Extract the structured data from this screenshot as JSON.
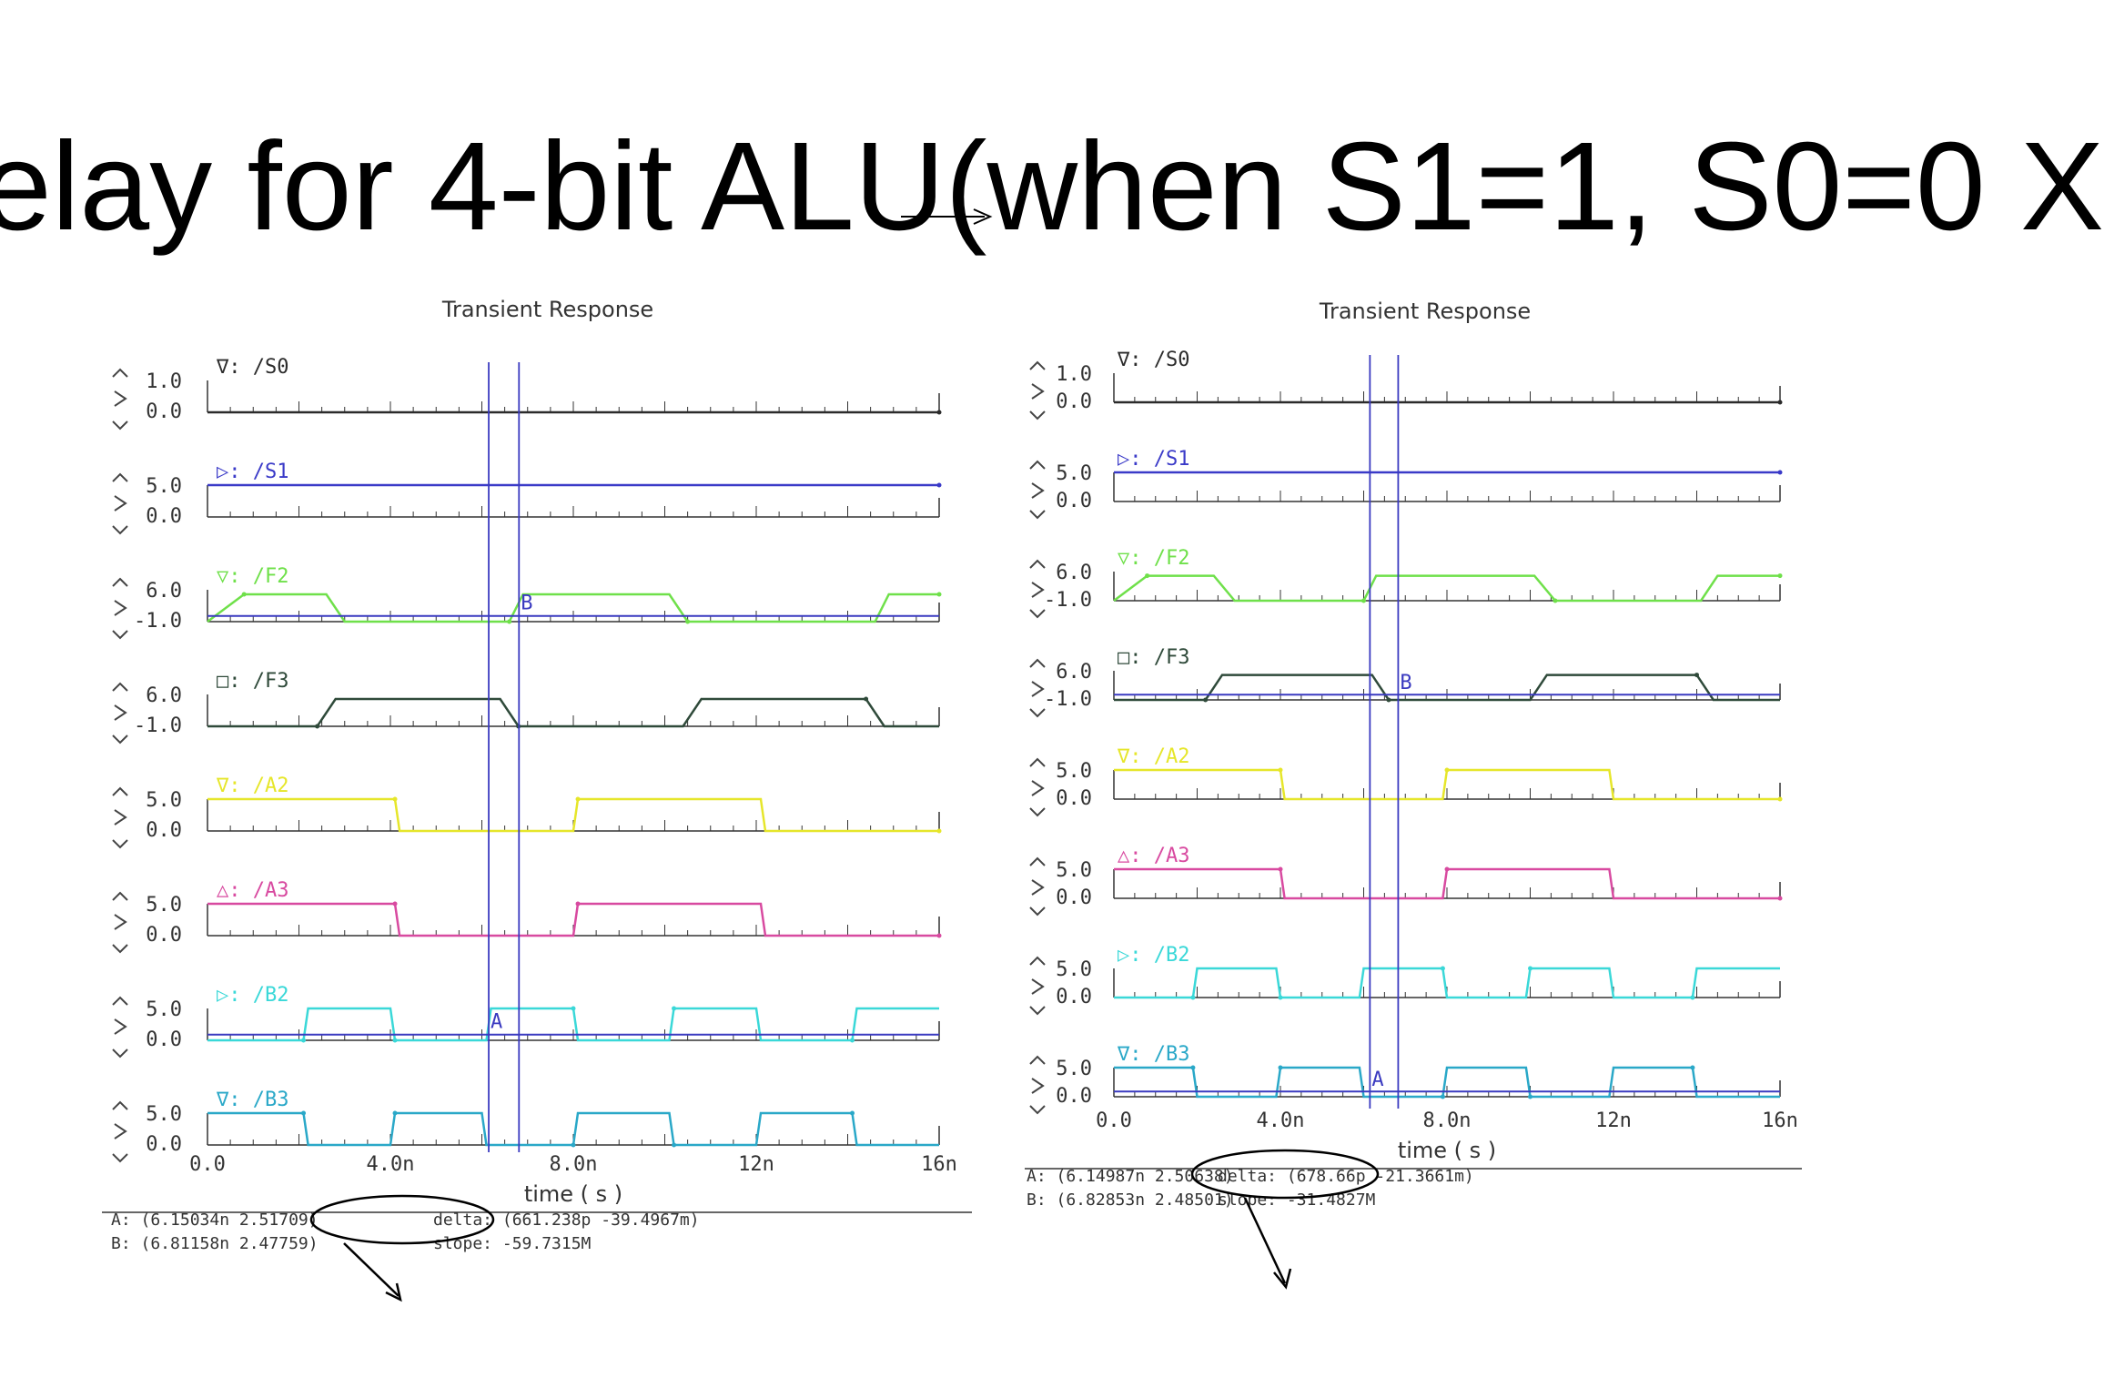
{
  "slide": {
    "title": "elay for 4-bit ALU(when S1=1, S0=0 X"
  },
  "colors": {
    "S0": "#2b2b2b",
    "S1": "#3a3ac8",
    "F2": "#6fe04a",
    "F3": "#2f4a3a",
    "A2": "#e6e62a",
    "A3": "#d84aa0",
    "B2": "#3ad8d8",
    "B3": "#2aa8c8",
    "cursor": "#3a3ac0",
    "axis": "#333333"
  },
  "chart_data": [
    {
      "type": "line",
      "title": "Transient Response",
      "xlabel": "time ( s )",
      "xlim": [
        0,
        16
      ],
      "xticks": [
        "0.0",
        "4.0n",
        "8.0n",
        "12n",
        "16n"
      ],
      "signals": [
        {
          "name": "/S0",
          "marker": "∇:",
          "yticks": [
            "1.0",
            "0.0"
          ],
          "ylim": [
            0,
            1
          ],
          "color_key": "S0",
          "points": [
            [
              0,
              0
            ],
            [
              16,
              0
            ]
          ]
        },
        {
          "name": "/S1",
          "marker": "▷:",
          "yticks": [
            "5.0",
            "0.0"
          ],
          "ylim": [
            0,
            5
          ],
          "color_key": "S1",
          "points": [
            [
              0,
              5
            ],
            [
              16,
              5
            ]
          ]
        },
        {
          "name": "/F2",
          "marker": "▽:",
          "yticks": [
            "6.0",
            "-1.0"
          ],
          "ylim": [
            -1,
            6
          ],
          "color_key": "F2",
          "points": [
            [
              0,
              -1
            ],
            [
              0.8,
              5
            ],
            [
              2.6,
              5
            ],
            [
              3.0,
              -1
            ],
            [
              6.6,
              -1
            ],
            [
              6.9,
              5
            ],
            [
              10.1,
              5
            ],
            [
              10.5,
              -1
            ],
            [
              14.6,
              -1
            ],
            [
              14.9,
              5
            ],
            [
              16,
              5
            ]
          ]
        },
        {
          "name": "/F3",
          "marker": "□:",
          "yticks": [
            "6.0",
            "-1.0"
          ],
          "ylim": [
            -1,
            6
          ],
          "color_key": "F3",
          "points": [
            [
              0,
              -1
            ],
            [
              2.4,
              -1
            ],
            [
              2.8,
              5
            ],
            [
              6.4,
              5
            ],
            [
              6.8,
              -1
            ],
            [
              10.4,
              -1
            ],
            [
              10.8,
              5
            ],
            [
              14.4,
              5
            ],
            [
              14.8,
              -1
            ],
            [
              16,
              -1
            ]
          ]
        },
        {
          "name": "/A2",
          "marker": "∇:",
          "yticks": [
            "5.0",
            "0.0"
          ],
          "ylim": [
            0,
            5
          ],
          "color_key": "A2",
          "points": [
            [
              0,
              5
            ],
            [
              4.1,
              5
            ],
            [
              4.2,
              0
            ],
            [
              8.0,
              0
            ],
            [
              8.1,
              5
            ],
            [
              12.1,
              5
            ],
            [
              12.2,
              0
            ],
            [
              16,
              0
            ]
          ]
        },
        {
          "name": "/A3",
          "marker": "△:",
          "yticks": [
            "5.0",
            "0.0"
          ],
          "ylim": [
            0,
            5
          ],
          "color_key": "A3",
          "points": [
            [
              0,
              5
            ],
            [
              4.1,
              5
            ],
            [
              4.2,
              0
            ],
            [
              8.0,
              0
            ],
            [
              8.1,
              5
            ],
            [
              12.1,
              5
            ],
            [
              12.2,
              0
            ],
            [
              16,
              0
            ]
          ]
        },
        {
          "name": "/B2",
          "marker": "▷:",
          "yticks": [
            "5.0",
            "0.0"
          ],
          "ylim": [
            0,
            5
          ],
          "color_key": "B2",
          "points": [
            [
              0,
              0
            ],
            [
              2.1,
              0
            ],
            [
              2.2,
              5
            ],
            [
              4.0,
              5
            ],
            [
              4.1,
              0
            ],
            [
              6.1,
              0
            ],
            [
              6.2,
              5
            ],
            [
              8.0,
              5
            ],
            [
              8.1,
              0
            ],
            [
              10.1,
              0
            ],
            [
              10.2,
              5
            ],
            [
              12.0,
              5
            ],
            [
              12.1,
              0
            ],
            [
              14.1,
              0
            ],
            [
              14.2,
              5
            ],
            [
              16,
              5
            ]
          ]
        },
        {
          "name": "/B3",
          "marker": "∇:",
          "yticks": [
            "5.0",
            "0.0"
          ],
          "ylim": [
            0,
            5
          ],
          "color_key": "B3",
          "points": [
            [
              0,
              5
            ],
            [
              2.1,
              5
            ],
            [
              2.2,
              0
            ],
            [
              4.0,
              0
            ],
            [
              4.1,
              5
            ],
            [
              6.0,
              5
            ],
            [
              6.1,
              0
            ],
            [
              8.0,
              0
            ],
            [
              8.1,
              5
            ],
            [
              10.1,
              5
            ],
            [
              10.2,
              0
            ],
            [
              12.0,
              0
            ],
            [
              12.1,
              5
            ],
            [
              14.1,
              5
            ],
            [
              14.2,
              0
            ],
            [
              16,
              0
            ]
          ]
        }
      ],
      "cursors": [
        {
          "label": "A",
          "time": 6.15034,
          "on_signal": "/B2"
        },
        {
          "label": "B",
          "time": 6.81158,
          "on_signal": "/F2"
        }
      ],
      "readout": {
        "a": "A: (6.15034n 2.51709)",
        "b": "B: (6.81158n 2.47759)",
        "delta": "delta: (661.238p -39.4967m)",
        "slope": "slope: -59.7315M"
      }
    },
    {
      "type": "line",
      "title": "Transient Response",
      "xlabel": "time ( s )",
      "xlim": [
        0,
        16
      ],
      "xticks": [
        "0.0",
        "4.0n",
        "8.0n",
        "12n",
        "16n"
      ],
      "signals": [
        {
          "name": "/S0",
          "marker": "∇:",
          "yticks": [
            "1.0",
            "0.0"
          ],
          "ylim": [
            0,
            1
          ],
          "color_key": "S0",
          "points": [
            [
              0,
              0
            ],
            [
              16,
              0
            ]
          ]
        },
        {
          "name": "/S1",
          "marker": "▷:",
          "yticks": [
            "5.0",
            "0.0"
          ],
          "ylim": [
            0,
            5
          ],
          "color_key": "S1",
          "points": [
            [
              0,
              5
            ],
            [
              16,
              5
            ]
          ]
        },
        {
          "name": "/F2",
          "marker": "▽:",
          "yticks": [
            "6.0",
            "-1.0"
          ],
          "ylim": [
            -1,
            6
          ],
          "color_key": "F2",
          "points": [
            [
              0,
              -1
            ],
            [
              0.8,
              5
            ],
            [
              2.4,
              5
            ],
            [
              2.9,
              -1
            ],
            [
              6.0,
              -1
            ],
            [
              6.3,
              5
            ],
            [
              10.1,
              5
            ],
            [
              10.6,
              -1
            ],
            [
              14.1,
              -1
            ],
            [
              14.5,
              5
            ],
            [
              16,
              5
            ]
          ]
        },
        {
          "name": "/F3",
          "marker": "□:",
          "yticks": [
            "6.0",
            "-1.0"
          ],
          "ylim": [
            -1,
            6
          ],
          "color_key": "F3",
          "points": [
            [
              0,
              -1
            ],
            [
              2.2,
              -1
            ],
            [
              2.6,
              5
            ],
            [
              6.2,
              5
            ],
            [
              6.6,
              -1
            ],
            [
              10.0,
              -1
            ],
            [
              10.4,
              5
            ],
            [
              14.0,
              5
            ],
            [
              14.4,
              -1
            ],
            [
              16,
              -1
            ]
          ]
        },
        {
          "name": "/A2",
          "marker": "∇:",
          "yticks": [
            "5.0",
            "0.0"
          ],
          "ylim": [
            0,
            5
          ],
          "color_key": "A2",
          "points": [
            [
              0,
              5
            ],
            [
              4.0,
              5
            ],
            [
              4.1,
              0
            ],
            [
              7.9,
              0
            ],
            [
              8.0,
              5
            ],
            [
              11.9,
              5
            ],
            [
              12.0,
              0
            ],
            [
              16,
              0
            ]
          ]
        },
        {
          "name": "/A3",
          "marker": "△:",
          "yticks": [
            "5.0",
            "0.0"
          ],
          "ylim": [
            0,
            5
          ],
          "color_key": "A3",
          "points": [
            [
              0,
              5
            ],
            [
              4.0,
              5
            ],
            [
              4.1,
              0
            ],
            [
              7.9,
              0
            ],
            [
              8.0,
              5
            ],
            [
              11.9,
              5
            ],
            [
              12.0,
              0
            ],
            [
              16,
              0
            ]
          ]
        },
        {
          "name": "/B2",
          "marker": "▷:",
          "yticks": [
            "5.0",
            "0.0"
          ],
          "ylim": [
            0,
            5
          ],
          "color_key": "B2",
          "points": [
            [
              0,
              0
            ],
            [
              1.9,
              0
            ],
            [
              2.0,
              5
            ],
            [
              3.9,
              5
            ],
            [
              4.0,
              0
            ],
            [
              5.9,
              0
            ],
            [
              6.0,
              5
            ],
            [
              7.9,
              5
            ],
            [
              8.0,
              0
            ],
            [
              9.9,
              0
            ],
            [
              10.0,
              5
            ],
            [
              11.9,
              5
            ],
            [
              12.0,
              0
            ],
            [
              13.9,
              0
            ],
            [
              14.0,
              5
            ],
            [
              16,
              5
            ]
          ]
        },
        {
          "name": "/B3",
          "marker": "∇:",
          "yticks": [
            "5.0",
            "0.0"
          ],
          "ylim": [
            0,
            5
          ],
          "color_key": "B3",
          "points": [
            [
              0,
              5
            ],
            [
              1.9,
              5
            ],
            [
              2.0,
              0
            ],
            [
              3.9,
              0
            ],
            [
              4.0,
              5
            ],
            [
              5.9,
              5
            ],
            [
              6.0,
              0
            ],
            [
              7.9,
              0
            ],
            [
              8.0,
              5
            ],
            [
              9.9,
              5
            ],
            [
              10.0,
              0
            ],
            [
              11.9,
              0
            ],
            [
              12.0,
              5
            ],
            [
              13.9,
              5
            ],
            [
              14.0,
              0
            ],
            [
              16,
              0
            ]
          ]
        }
      ],
      "cursors": [
        {
          "label": "A",
          "time": 6.14987,
          "on_signal": "/B3"
        },
        {
          "label": "B",
          "time": 6.82853,
          "on_signal": "/F3"
        }
      ],
      "readout": {
        "a": "A: (6.14987n 2.50638)",
        "b": "B: (6.82853n 2.48501)",
        "delta": "delta: (678.66p -21.3661m)",
        "slope": "slope: -31.4827M"
      }
    }
  ]
}
